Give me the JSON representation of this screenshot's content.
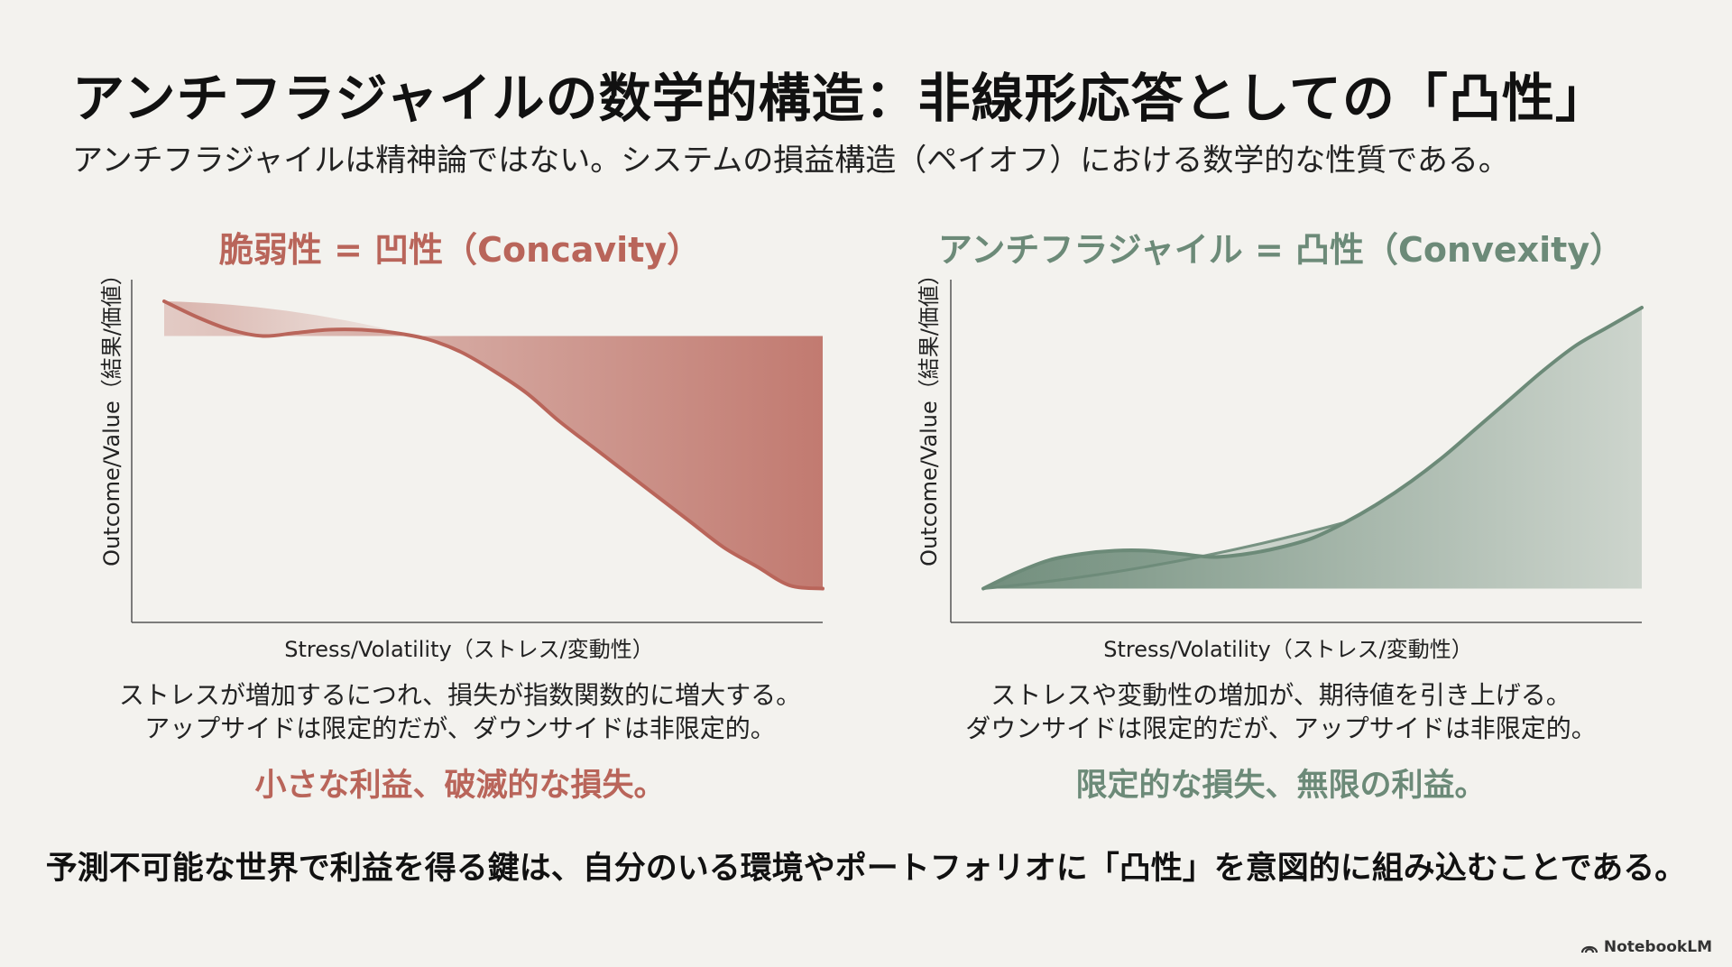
{
  "header": {
    "title": "アンチフラジャイルの数学的構造：非線形応答としての「凸性」",
    "subtitle": "アンチフラジャイルは精神論ではない。システムの損益構造（ペイオフ）における数学的な性質である。"
  },
  "panels": {
    "fragile": {
      "title": "脆弱性 = 凹性（Concavity）",
      "xlabel": "Stress/Volatility（ストレス/変動性）",
      "ylabel": "Outcome/Value（結果/価値）",
      "desc_line1": "ストレスが増加するにつれ、損失が指数関数的に増大する。",
      "desc_line2": "アップサイドは限定的だが、ダウンサイドは非限定的。",
      "verdict": "小さな利益、破滅的な損失。",
      "color": "#b9655a"
    },
    "antifragile": {
      "title": "アンチフラジャイル = 凸性（Convexity）",
      "xlabel": "Stress/Volatility（ストレス/変動性）",
      "ylabel": "Outcome/Value（結果/価値）",
      "desc_line1": "ストレスや変動性の増加が、期待値を引き上げる。",
      "desc_line2": "ダウンサイドは限定的だが、アップサイドは非限定的。",
      "verdict": "限定的な損失、無限の利益。",
      "color": "#6c8a78"
    }
  },
  "conclusion": "予測不可能な世界で利益を得る鍵は、自分のいる環境やポートフォリオに「凸性」を意図的に組み込むことである。",
  "brand": {
    "name": "NotebookLM"
  },
  "chart_data": [
    {
      "type": "line",
      "title": "脆弱性 = 凹性（Concavity）",
      "xlabel": "Stress/Volatility（ストレス/変動性）",
      "ylabel": "Outcome/Value（結果/価値）",
      "x": [
        0,
        0.05,
        0.1,
        0.15,
        0.2,
        0.25,
        0.3,
        0.35,
        0.4,
        0.45,
        0.5,
        0.55,
        0.6,
        0.65,
        0.7,
        0.75,
        0.8,
        0.85,
        0.9,
        0.95,
        1.0
      ],
      "y": [
        0.96,
        0.91,
        0.87,
        0.85,
        0.86,
        0.87,
        0.87,
        0.86,
        0.84,
        0.8,
        0.74,
        0.67,
        0.58,
        0.5,
        0.42,
        0.34,
        0.26,
        0.18,
        0.12,
        0.06,
        0.05
      ],
      "baseline": 0.85,
      "xlim": [
        0,
        1
      ],
      "ylim": [
        0,
        1
      ],
      "color": "#b9655a"
    },
    {
      "type": "line",
      "title": "アンチフラジャイル = 凸性（Convexity）",
      "xlabel": "Stress/Volatility（ストレス/変動性）",
      "ylabel": "Outcome/Value（結果/価値）",
      "x": [
        0,
        0.05,
        0.1,
        0.15,
        0.2,
        0.25,
        0.3,
        0.35,
        0.4,
        0.45,
        0.5,
        0.55,
        0.6,
        0.65,
        0.7,
        0.75,
        0.8,
        0.85,
        0.9,
        0.95,
        1.0
      ],
      "y": [
        0.05,
        0.1,
        0.14,
        0.16,
        0.17,
        0.17,
        0.16,
        0.15,
        0.16,
        0.18,
        0.21,
        0.26,
        0.32,
        0.39,
        0.47,
        0.56,
        0.65,
        0.74,
        0.82,
        0.88,
        0.94
      ],
      "baseline": 0.05,
      "xlim": [
        0,
        1
      ],
      "ylim": [
        0,
        1
      ],
      "color": "#6c8a78"
    }
  ]
}
